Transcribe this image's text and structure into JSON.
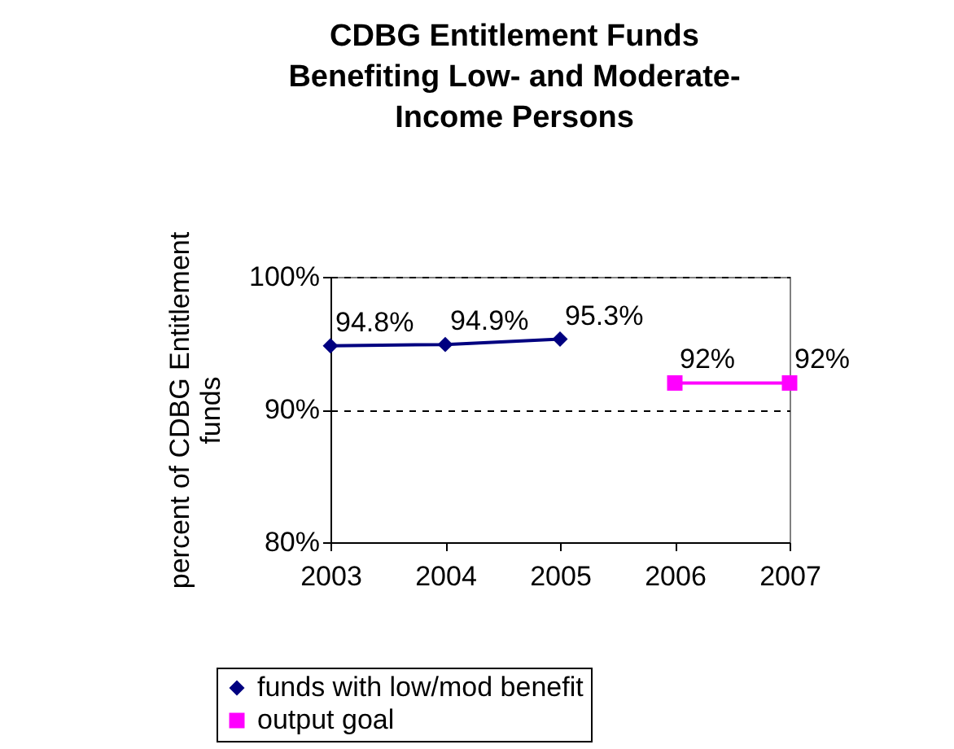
{
  "chart_data": {
    "type": "line",
    "title": "CDBG Entitlement Funds\nBenefiting Low- and Moderate-\nIncome Persons",
    "ylabel": "percent of CDBG Entitlement\nfunds",
    "categories": [
      "2003",
      "2004",
      "2005",
      "2006",
      "2007"
    ],
    "series": [
      {
        "name": "funds with low/mod benefit",
        "color": "#000080",
        "marker": "diamond",
        "values": [
          94.8,
          94.9,
          95.3,
          null,
          null
        ],
        "value_labels": [
          "94.8%",
          "94.9%",
          "95.3%",
          null,
          null
        ]
      },
      {
        "name": "output goal",
        "color": "#ff00ff",
        "marker": "square",
        "values": [
          null,
          null,
          null,
          92,
          92
        ],
        "value_labels": [
          null,
          null,
          null,
          "92%",
          "92%"
        ]
      }
    ],
    "ylim": [
      80,
      100
    ],
    "yticks": [
      {
        "value": 80,
        "label": "80%"
      },
      {
        "value": 90,
        "label": "90%"
      },
      {
        "value": 100,
        "label": "100%"
      }
    ],
    "grid": "y",
    "legend": "bottom",
    "line_style": "solid"
  }
}
